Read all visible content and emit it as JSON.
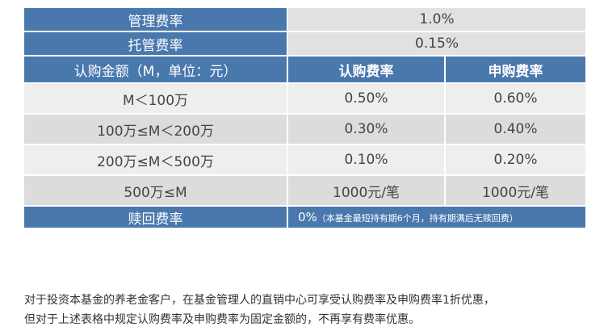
{
  "table": {
    "management_fee": {
      "label": "管理费率",
      "value": "1.0%"
    },
    "custody_fee": {
      "label": "托管费率",
      "value": "0.15%"
    },
    "headers": {
      "amount": "认购金额（M，单位：元）",
      "subscription": "认购费率",
      "purchase": "申购费率"
    },
    "tiers": [
      {
        "amount": "M＜100万",
        "subscription": "0.50%",
        "purchase": "0.60%"
      },
      {
        "amount": "100万≤M＜200万",
        "subscription": "0.30%",
        "purchase": "0.40%"
      },
      {
        "amount": "200万≤M＜500万",
        "subscription": "0.10%",
        "purchase": "0.20%"
      },
      {
        "amount": "500万≤M",
        "subscription": "1000元/笔",
        "purchase": "1000元/笔"
      }
    ],
    "redemption": {
      "label": "赎回费率",
      "value": "0%",
      "note": "（本基金最短持有期6个月，持有期满后无赎回费）"
    }
  },
  "footnote": {
    "line1": "对于投资本基金的养老金客户，在基金管理人的直销中心可享受认购费率及申购费率1折优惠，",
    "line2": "但对于上述表格中规定认购费率及申购费率为固定金额的，不再享有费率优惠。"
  },
  "colors": {
    "header_blue": "#4978ad",
    "row_light": "#eeeeee",
    "row_dark": "#dcdcdc",
    "top_value_bg": "#e1e1e1"
  }
}
